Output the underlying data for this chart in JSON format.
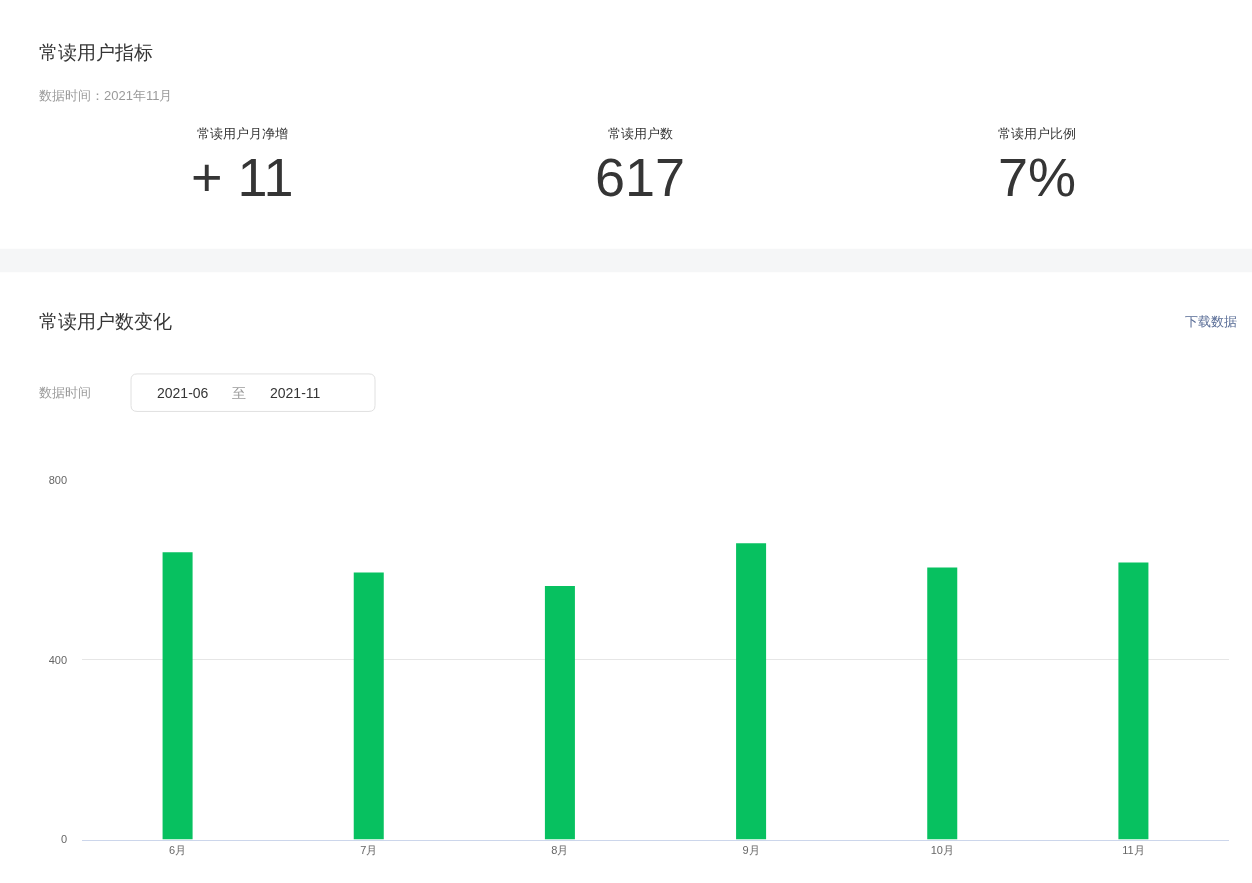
{
  "chart_data": [
    {
      "type": "other",
      "title": "常读用户指标",
      "subtitle": "数据时间：2021年11月",
      "categories": [
        "常读用户月净增",
        "常读用户数",
        "常读用户比例"
      ],
      "value_labels": [
        "+ 11",
        "617",
        "7%"
      ]
    },
    {
      "type": "bar",
      "title": "常读用户数变化",
      "annotations": [
        "下载数据",
        "数据时间",
        "2021-06",
        "至",
        "2021-11"
      ],
      "categories": [
        "6月",
        "7月",
        "8月",
        "9月",
        "10月",
        "11月"
      ],
      "values": [
        640,
        595,
        565,
        660,
        606,
        617
      ],
      "color": "#07c160",
      "ylim": [
        0,
        800
      ],
      "yticks": [
        0,
        400,
        800
      ],
      "grid": "y"
    }
  ]
}
